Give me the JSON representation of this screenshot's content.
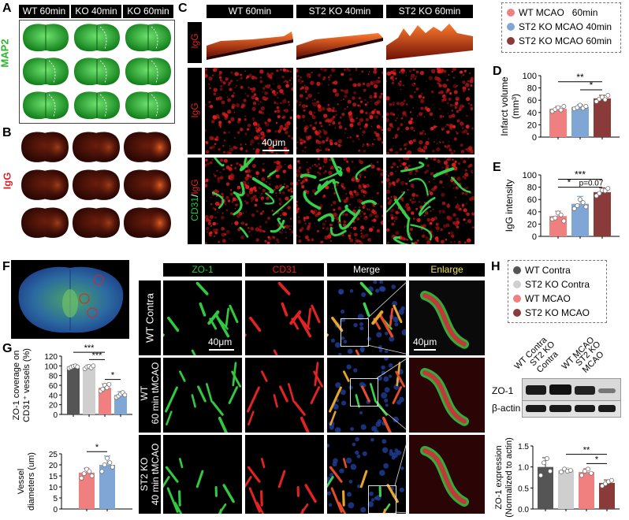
{
  "panels": {
    "A": "A",
    "B": "B",
    "C": "C",
    "D": "D",
    "E": "E",
    "F": "F",
    "G": "G",
    "H": "H"
  },
  "panelA": {
    "columns": [
      "WT 60min",
      "KO 40min",
      "KO 60min"
    ],
    "stain": "MAP2"
  },
  "panelB": {
    "stain": "IgG"
  },
  "panelC": {
    "columns": [
      "WT 60min",
      "ST2 KO 40min",
      "ST2 KO 60min"
    ],
    "row_labels": [
      "IgG",
      "IgG"
    ],
    "row3_label_a": "CD31",
    "row3_label_sep": "/",
    "row3_label_b": "IgG",
    "scalebar": "40μm"
  },
  "legend_top": [
    {
      "label": "WT MCAO   60min",
      "color": "#f08080"
    },
    {
      "label": "ST2 KO MCAO 40min",
      "color": "#7fa6d4"
    },
    {
      "label": "ST2 KO MCAO 60min",
      "color": "#8b3a3a"
    }
  ],
  "panelF": {
    "columns": [
      "ZO-1",
      "CD31",
      "Merge",
      "Enlarge"
    ],
    "rows": [
      "WT Contra",
      "WT 60 min tMCAO",
      "ST2 KO 40 min tMCAO"
    ],
    "scalebar": "40μm"
  },
  "legend_H": [
    {
      "label": "WT Contra",
      "color": "#555555"
    },
    {
      "label": "ST2 KO Contra",
      "color": "#cfcfcf"
    },
    {
      "label": "WT MCAO",
      "color": "#f08080"
    },
    {
      "label": "ST2 KO MCAO",
      "color": "#8b3a3a"
    }
  ],
  "blot": {
    "lanes": [
      "WT Contra",
      "ST2 KO Contra",
      "WT MCAO",
      "ST2 KO MCAO"
    ],
    "bands": [
      "ZO-1",
      "β-actin"
    ]
  },
  "chart_data": [
    {
      "id": "D",
      "type": "bar",
      "categories": [
        "WT MCAO 60min",
        "ST2 KO MCAO 40min",
        "ST2 KO MCAO 60min"
      ],
      "values": [
        46,
        49,
        63
      ],
      "errors": [
        4,
        4,
        5
      ],
      "points": [
        [
          42,
          45,
          48,
          44,
          50
        ],
        [
          46,
          48,
          52,
          47,
          50
        ],
        [
          58,
          62,
          65,
          61,
          68
        ]
      ],
      "colors": [
        "#f08080",
        "#7fa6d4",
        "#8b3a3a"
      ],
      "ylabel": "Infarct volume (mm³)",
      "ylabel_line1": "Infarct volume",
      "ylabel_line2": "(mm³)",
      "ylim": [
        0,
        100
      ],
      "yticks": [
        "0",
        "20",
        "40",
        "60",
        "80",
        "100"
      ],
      "ytick_values": [
        0,
        20,
        40,
        60,
        80,
        100
      ],
      "sig": [
        {
          "from": 0,
          "to": 2,
          "label": "**",
          "level": 90
        },
        {
          "from": 1,
          "to": 2,
          "label": "*",
          "level": 77
        }
      ]
    },
    {
      "id": "E",
      "type": "bar",
      "categories": [
        "WT MCAO 60min",
        "ST2 KO MCAO 40min",
        "ST2 KO MCAO 60min"
      ],
      "values": [
        33,
        53,
        72
      ],
      "errors": [
        8,
        12,
        7
      ],
      "points": [
        [
          28,
          30,
          38,
          35,
          25
        ],
        [
          45,
          50,
          60,
          55,
          48
        ],
        [
          66,
          70,
          75,
          74,
          78
        ]
      ],
      "colors": [
        "#f08080",
        "#7fa6d4",
        "#8b3a3a"
      ],
      "ylabel": "IgG intensity",
      "ylim": [
        0,
        100
      ],
      "yticks": [
        "0",
        "20",
        "40",
        "60",
        "80",
        "100"
      ],
      "ytick_values": [
        0,
        20,
        40,
        60,
        80,
        100
      ],
      "sig": [
        {
          "from": 0,
          "to": 2,
          "label": "***",
          "level": 93
        },
        {
          "from": 0,
          "to": 1,
          "label": "*",
          "level": 80
        },
        {
          "from": 1,
          "to": 2,
          "label": "p=0.07",
          "level": 80
        }
      ]
    },
    {
      "id": "G1",
      "type": "bar",
      "categories": [
        "WT Contra",
        "ST2 KO Contra",
        "WT MCAO",
        "ST2 KO MCAO"
      ],
      "values": [
        98,
        97,
        55,
        40
      ],
      "errors": [
        3,
        4,
        8,
        7
      ],
      "points": [
        [
          95,
          97,
          99,
          100,
          98
        ],
        [
          94,
          98,
          99,
          96,
          100
        ],
        [
          48,
          52,
          60,
          55,
          62
        ],
        [
          35,
          38,
          42,
          45,
          40
        ]
      ],
      "colors": [
        "#555555",
        "#cfcfcf",
        "#f08080",
        "#7fa6d4"
      ],
      "ylabel": "ZO-1 coverage on CD31⁺ vessels (%)",
      "ylabel_line1": "ZO-1 coverage on",
      "ylabel_line2": "CD31⁺ vessels (%)",
      "ylim": [
        0,
        120
      ],
      "yticks": [
        "0",
        "20",
        "40",
        "60",
        "80",
        "100",
        "120"
      ],
      "ytick_values": [
        0,
        20,
        40,
        60,
        80,
        100,
        120
      ],
      "sig": [
        {
          "from": 0,
          "to": 2,
          "label": "***",
          "level": 128
        },
        {
          "from": 1,
          "to": 2,
          "label": "***",
          "level": 113
        },
        {
          "from": 2,
          "to": 3,
          "label": "*",
          "level": 72
        }
      ]
    },
    {
      "id": "G2",
      "type": "bar",
      "categories": [
        "WT MCAO",
        "ST2 KO MCAO"
      ],
      "values": [
        16.5,
        20
      ],
      "errors": [
        2,
        4
      ],
      "points": [
        [
          14,
          16,
          18,
          17,
          15
        ],
        [
          17,
          20,
          23,
          21,
          19
        ]
      ],
      "colors": [
        "#f08080",
        "#7fa6d4"
      ],
      "ylabel": "Vessel diameters (um)",
      "ylabel_line1": "Vessel",
      "ylabel_line2": "diameters (um)",
      "ylim": [
        0,
        25
      ],
      "yticks": [
        "0",
        "5",
        "10",
        "15",
        "20",
        "25"
      ],
      "ytick_values": [
        0,
        5,
        10,
        15,
        20,
        25
      ],
      "sig": [
        {
          "from": 0,
          "to": 1,
          "label": "*",
          "level": 26
        }
      ]
    },
    {
      "id": "H",
      "type": "bar",
      "categories": [
        "WT Contra",
        "ST2 KO Contra",
        "WT MCAO",
        "ST2 KO MCAO"
      ],
      "values": [
        1.0,
        0.92,
        0.88,
        0.62
      ],
      "errors": [
        0.22,
        0.06,
        0.08,
        0.07
      ],
      "points": [
        [
          0.8,
          1.1,
          1.2,
          0.9
        ],
        [
          0.88,
          0.95,
          0.9,
          0.92
        ],
        [
          0.8,
          0.9,
          0.95,
          0.85
        ],
        [
          0.55,
          0.6,
          0.65,
          0.68
        ]
      ],
      "colors": [
        "#555555",
        "#cfcfcf",
        "#f08080",
        "#8b3a3a"
      ],
      "ylabel": "ZO-1 expression (Normalized to actin)",
      "ylabel_line1": "ZO-1 expression",
      "ylabel_line2": "(Normalized to actin)",
      "ylim": [
        0,
        1.5
      ],
      "yticks": [
        "0.0",
        "0.5",
        "1.0",
        "1.5"
      ],
      "ytick_values": [
        0,
        0.5,
        1.0,
        1.5
      ],
      "sig": [
        {
          "from": 1,
          "to": 3,
          "label": "**",
          "level": 1.3
        },
        {
          "from": 2,
          "to": 3,
          "label": "*",
          "level": 1.08
        }
      ]
    }
  ]
}
